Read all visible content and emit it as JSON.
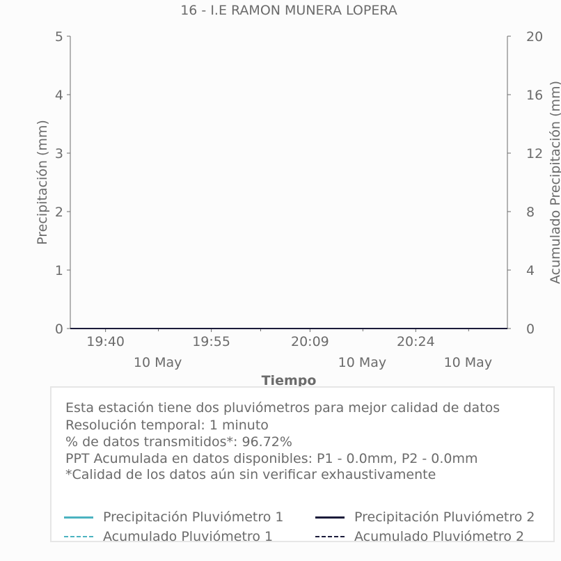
{
  "chart_data": {
    "type": "line",
    "title": "16 - I.E RAMON MUNERA LOPERA",
    "xlabel": "Tiempo",
    "ylabel": "Precipitación (mm)",
    "y2label": "Acumulado Precipitación (mm)",
    "ylim": [
      0,
      5
    ],
    "y2lim": [
      0,
      20
    ],
    "yticks": [
      "0",
      "1",
      "2",
      "3",
      "4",
      "5"
    ],
    "y2ticks": [
      "0",
      "4",
      "8",
      "12",
      "16",
      "20"
    ],
    "x_ticks": [
      {
        "time": "19:40",
        "date": "10 May"
      },
      {
        "time": "19:55",
        "date": "10 May"
      },
      {
        "time": "20:09",
        "date": "10 May"
      },
      {
        "time": "20:24",
        "date": "10 May"
      }
    ],
    "x_range": [
      "19:35",
      "20:37"
    ],
    "series": [
      {
        "name": "Precipitación Pluviómetro 1",
        "color": "#4bb3c0",
        "style": "solid",
        "axis": "left",
        "x": [
          "19:35",
          "20:37"
        ],
        "values": [
          0.0,
          0.0
        ]
      },
      {
        "name": "Precipitación Pluviómetro 2",
        "color": "#1b1b3a",
        "style": "solid",
        "axis": "left",
        "x": [
          "19:35",
          "20:37"
        ],
        "values": [
          0.0,
          0.0
        ]
      },
      {
        "name": "Acumulado Pluviómetro 1",
        "color": "#4bb3c0",
        "style": "dashed",
        "axis": "right",
        "x": [
          "19:35",
          "20:37"
        ],
        "values": [
          0.0,
          0.0
        ]
      },
      {
        "name": "Acumulado Pluviómetro 2",
        "color": "#1b1b3a",
        "style": "dashed",
        "axis": "right",
        "x": [
          "19:35",
          "20:37"
        ],
        "values": [
          0.0,
          0.0
        ]
      }
    ]
  },
  "info": {
    "lines": [
      "Esta estación tiene dos pluviómetros para mejor calidad de datos",
      "Resolución temporal: 1 minuto",
      "% de datos transmitidos*: 96.72%",
      "PPT Acumulada en datos disponibles: P1 - 0.0mm, P2 - 0.0mm",
      "*Calidad de los datos aún sin verificar exhaustivamente"
    ]
  }
}
